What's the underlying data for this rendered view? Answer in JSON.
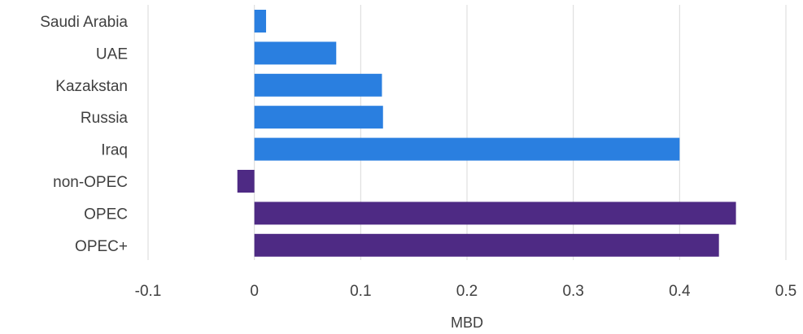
{
  "chart_data": {
    "type": "bar",
    "orientation": "horizontal",
    "categories": [
      "Saudi Arabia",
      "UAE",
      "Kazakstan",
      "Russia",
      "Iraq",
      "non-OPEC",
      "OPEC",
      "OPEC+"
    ],
    "values": [
      0.011,
      0.077,
      0.12,
      0.121,
      0.4,
      -0.016,
      0.453,
      0.437
    ],
    "bar_colors": [
      "#2a7fe0",
      "#2a7fe0",
      "#2a7fe0",
      "#2a7fe0",
      "#2a7fe0",
      "#4e2a84",
      "#4e2a84",
      "#4e2a84"
    ],
    "xlim": [
      -0.1,
      0.5
    ],
    "xticks": [
      -0.1,
      0,
      0.1,
      0.2,
      0.3,
      0.4,
      0.5
    ],
    "xtick_labels": [
      "-0.1",
      "0",
      "0.1",
      "0.2",
      "0.3",
      "0.4",
      "0.5"
    ],
    "xlabel": "MBD",
    "grid": "vertical"
  }
}
